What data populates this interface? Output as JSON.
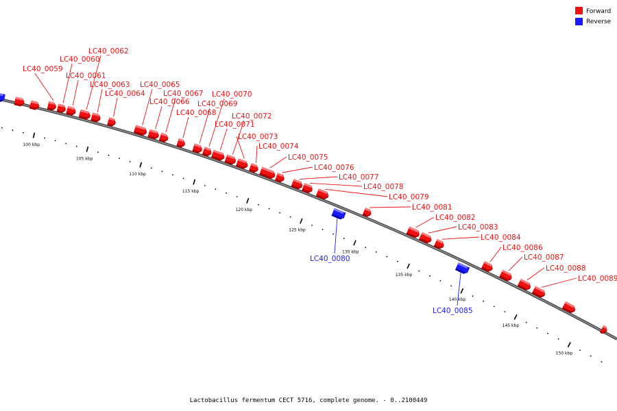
{
  "caption": "Lactobacillus fermentum CECT 5716, complete genome. - 0..2100449",
  "colors": {
    "forward": "#ee1111",
    "forward_light": "#ff7b7b",
    "forward_dark": "#b00000",
    "reverse": "#1a1aff",
    "reverse_light": "#7a7aff",
    "reverse_dark": "#0000b0",
    "backbone": "#8a8a8a",
    "backbone_edge": "#333333"
  },
  "legend": [
    {
      "label": "Forward",
      "strand": "forward"
    },
    {
      "label": "Reverse",
      "strand": "reverse"
    }
  ],
  "ticks": [
    "100 kbp",
    "105 kbp",
    "110 kbp",
    "115 kbp",
    "120 kbp",
    "125 kbp",
    "130 kbp",
    "135 kbp",
    "140 kbp",
    "145 kbp",
    "150 kbp"
  ],
  "genes": [
    {
      "id": "LC40_0059",
      "strand": "forward"
    },
    {
      "id": "LC40_0060",
      "strand": "forward"
    },
    {
      "id": "LC40_0061",
      "strand": "forward"
    },
    {
      "id": "LC40_0062",
      "strand": "forward"
    },
    {
      "id": "LC40_0063",
      "strand": "forward"
    },
    {
      "id": "LC40_0064",
      "strand": "forward"
    },
    {
      "id": "LC40_0065",
      "strand": "forward"
    },
    {
      "id": "LC40_0066",
      "strand": "forward"
    },
    {
      "id": "LC40_0067",
      "strand": "forward"
    },
    {
      "id": "LC40_0068",
      "strand": "forward"
    },
    {
      "id": "LC40_0069",
      "strand": "forward"
    },
    {
      "id": "LC40_0070",
      "strand": "forward"
    },
    {
      "id": "LC40_0071",
      "strand": "forward"
    },
    {
      "id": "LC40_0072",
      "strand": "forward"
    },
    {
      "id": "LC40_0073",
      "strand": "forward"
    },
    {
      "id": "LC40_0074",
      "strand": "forward"
    },
    {
      "id": "LC40_0075",
      "strand": "forward"
    },
    {
      "id": "LC40_0076",
      "strand": "forward"
    },
    {
      "id": "LC40_0077",
      "strand": "forward"
    },
    {
      "id": "LC40_0078",
      "strand": "forward"
    },
    {
      "id": "LC40_0079",
      "strand": "forward"
    },
    {
      "id": "LC40_0080",
      "strand": "reverse"
    },
    {
      "id": "LC40_0081",
      "strand": "forward"
    },
    {
      "id": "LC40_0082",
      "strand": "forward"
    },
    {
      "id": "LC40_0083",
      "strand": "forward"
    },
    {
      "id": "LC40_0084",
      "strand": "forward"
    },
    {
      "id": "LC40_0085",
      "strand": "reverse"
    },
    {
      "id": "LC40_0086",
      "strand": "forward"
    },
    {
      "id": "LC40_0087",
      "strand": "forward"
    },
    {
      "id": "LC40_0088",
      "strand": "forward"
    },
    {
      "id": "LC40_0089",
      "strand": "forward"
    }
  ]
}
